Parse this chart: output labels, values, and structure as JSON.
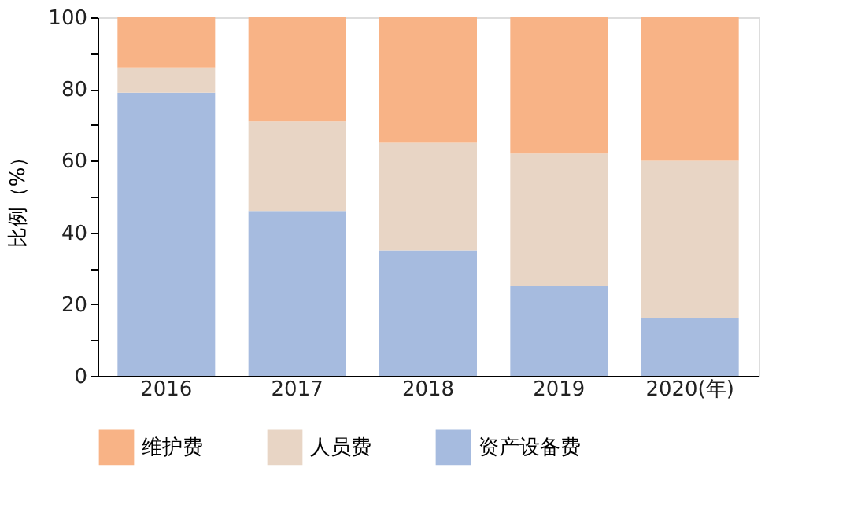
{
  "chart_data": {
    "type": "bar",
    "stacked": true,
    "ylabel": "比例（%）",
    "categories": [
      "2016",
      "2017",
      "2018",
      "2019",
      "2020(年)"
    ],
    "series": [
      {
        "name": "资产设备费",
        "color": "#a6bbdf",
        "values": [
          79,
          46,
          35,
          25,
          16
        ]
      },
      {
        "name": "人员费",
        "color": "#e8d5c5",
        "values": [
          7,
          25,
          30,
          37,
          44
        ]
      },
      {
        "name": "维护费",
        "color": "#f8b386",
        "values": [
          14,
          29,
          35,
          38,
          40
        ]
      }
    ],
    "ylim": [
      0,
      100
    ],
    "yticks": [
      0,
      {
        "value": 10,
        "label": null
      },
      20,
      {
        "value": 30,
        "label": null
      },
      40,
      {
        "value": 50,
        "label": null
      },
      60,
      {
        "value": 70,
        "label": null
      },
      80,
      {
        "value": 90,
        "label": null
      },
      100
    ],
    "grid": false,
    "legend": "bottom"
  }
}
